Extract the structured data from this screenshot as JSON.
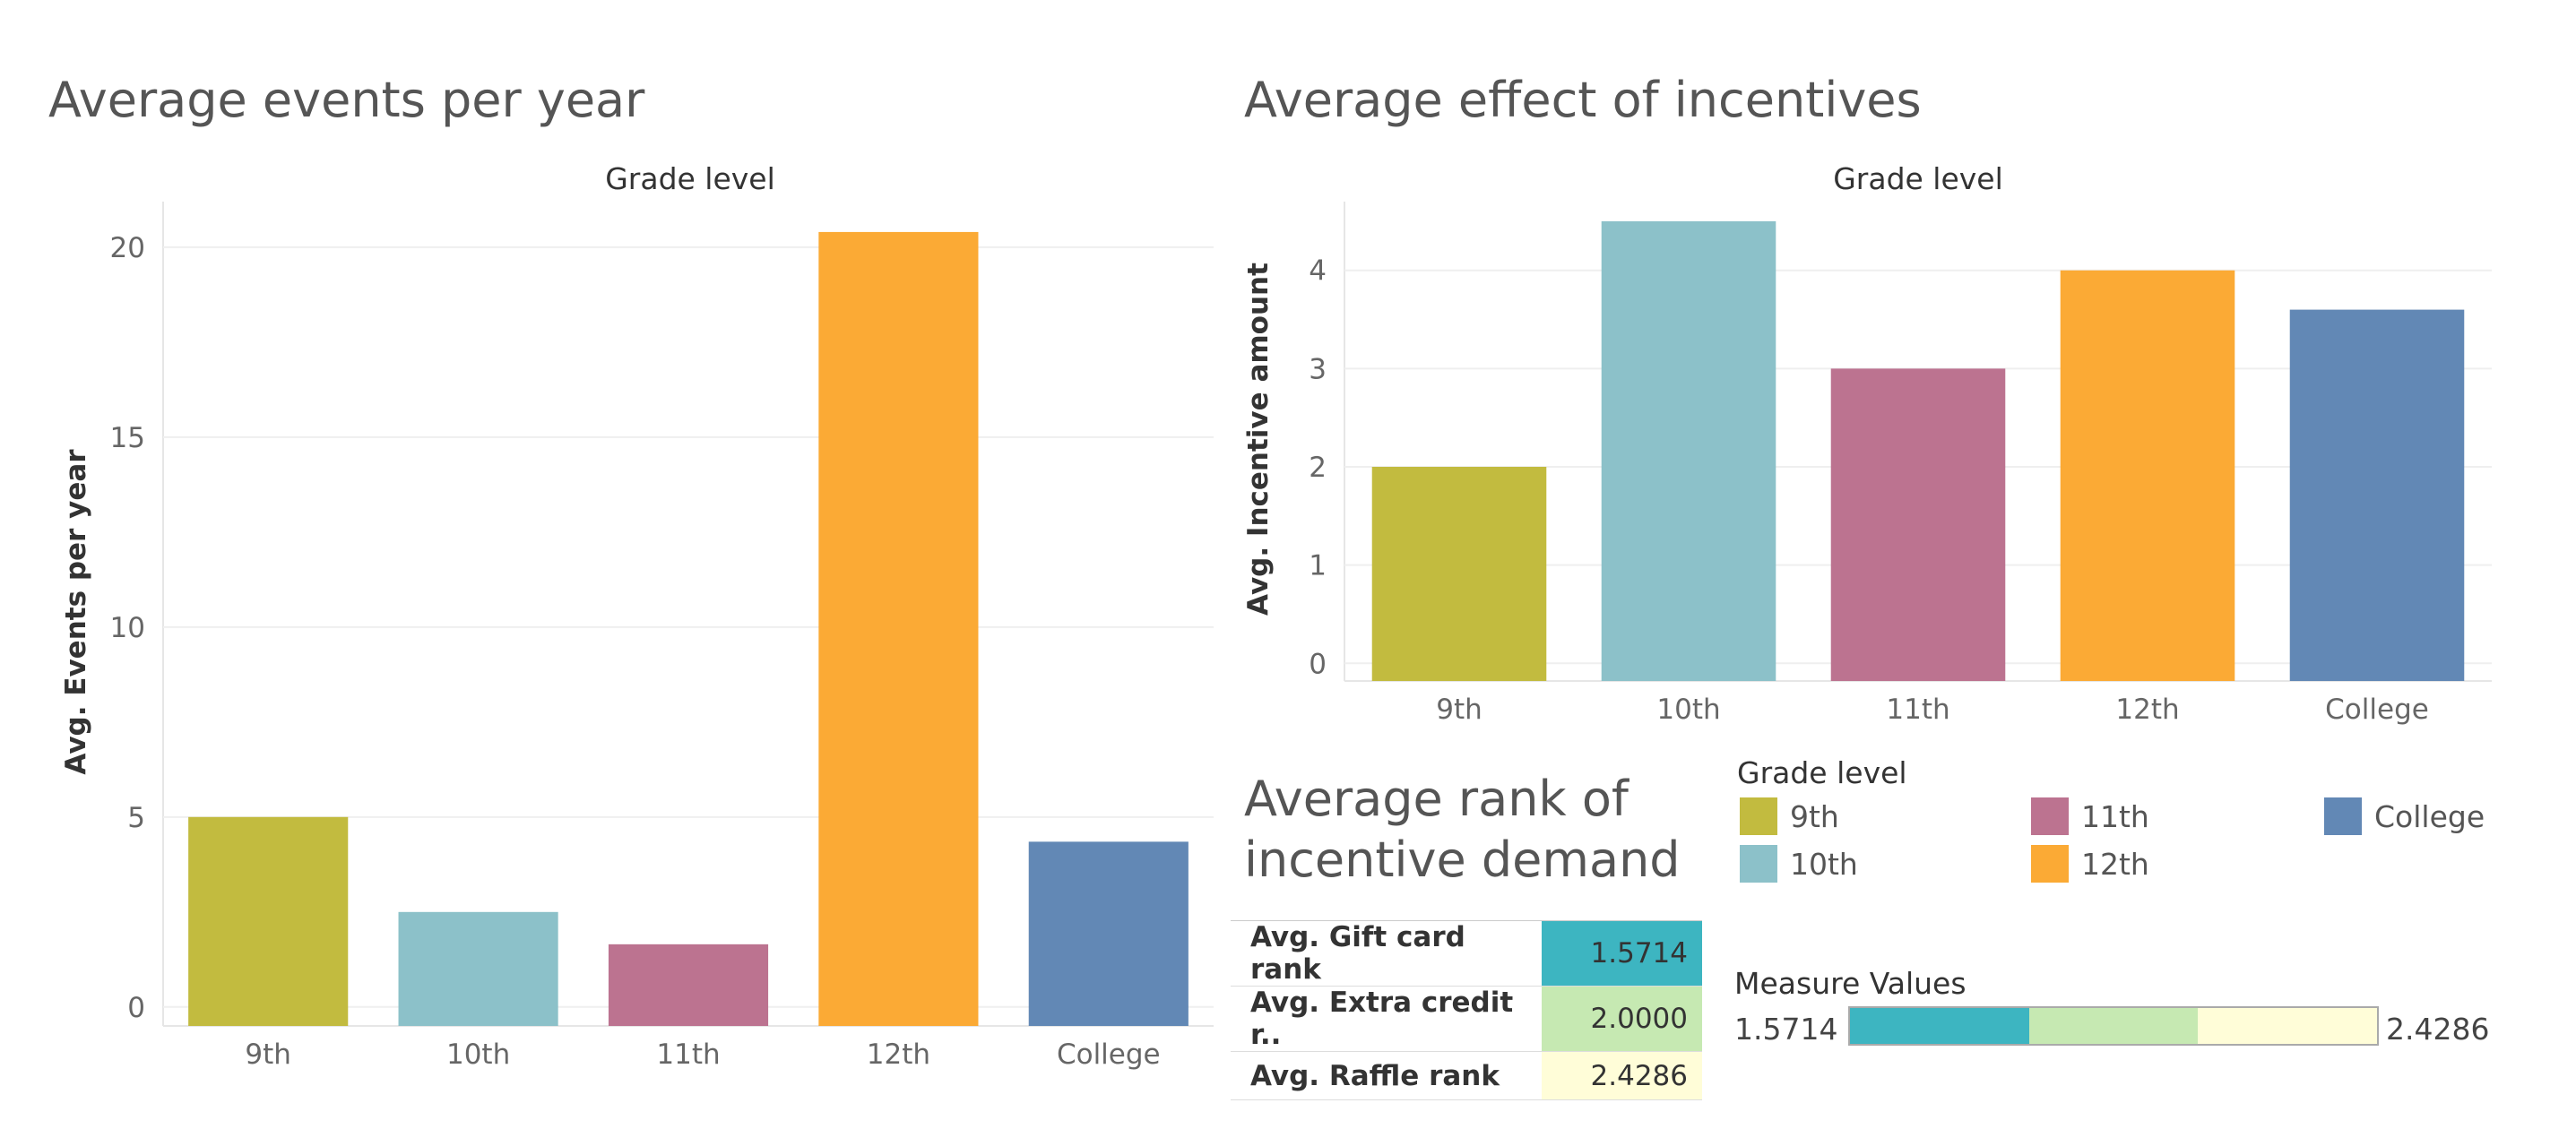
{
  "chart_data": [
    {
      "type": "bar",
      "title": "Average events per year",
      "column_header": "Grade level",
      "ylabel": "Avg. Events per year",
      "categories": [
        "9th",
        "10th",
        "11th",
        "12th",
        "College"
      ],
      "values": [
        5.0,
        2.5,
        1.65,
        20.4,
        4.35
      ],
      "ylim": [
        -0.5,
        21.2
      ],
      "yticks": [
        0,
        5,
        10,
        15,
        20
      ],
      "grid": true
    },
    {
      "type": "bar",
      "title": "Average effect of incentives",
      "column_header": "Grade level",
      "ylabel": "Avg. Incentive amount",
      "categories": [
        "9th",
        "10th",
        "11th",
        "12th",
        "College"
      ],
      "values": [
        2.0,
        4.5,
        3.0,
        4.0,
        3.6
      ],
      "ylim": [
        -0.18,
        4.7
      ],
      "yticks": [
        0,
        1,
        2,
        3,
        4
      ],
      "grid": true
    },
    {
      "type": "table",
      "title": "Average rank of incentive demand",
      "rows": [
        {
          "label": "Avg. Gift card rank",
          "value": "1.5714",
          "color": "#3db5c1"
        },
        {
          "label": "Avg. Extra credit r..",
          "value": "2.0000",
          "color": "#c6e9b2"
        },
        {
          "label": "Avg. Raffle rank",
          "value": "2.4286",
          "color": "#fffdd8"
        }
      ]
    }
  ],
  "grade_colors": [
    "#c2bb3f",
    "#8cc1c9",
    "#bc7390",
    "#fbaa35",
    "#6288b5"
  ],
  "legend": {
    "title": "Grade level",
    "items": [
      {
        "label": "9th",
        "color": "#c2bb3f"
      },
      {
        "label": "10th",
        "color": "#8cc1c9"
      },
      {
        "label": "11th",
        "color": "#bc7390"
      },
      {
        "label": "12th",
        "color": "#fbaa35"
      },
      {
        "label": "College",
        "color": "#6288b5"
      }
    ]
  },
  "measure_values": {
    "title": "Measure Values",
    "min": "1.5714",
    "max": "2.4286",
    "segments": [
      {
        "color": "#3db5c1",
        "share": 0.34
      },
      {
        "color": "#c6e9b2",
        "share": 0.32
      },
      {
        "color": "#fffdd8",
        "share": 0.34
      }
    ]
  }
}
